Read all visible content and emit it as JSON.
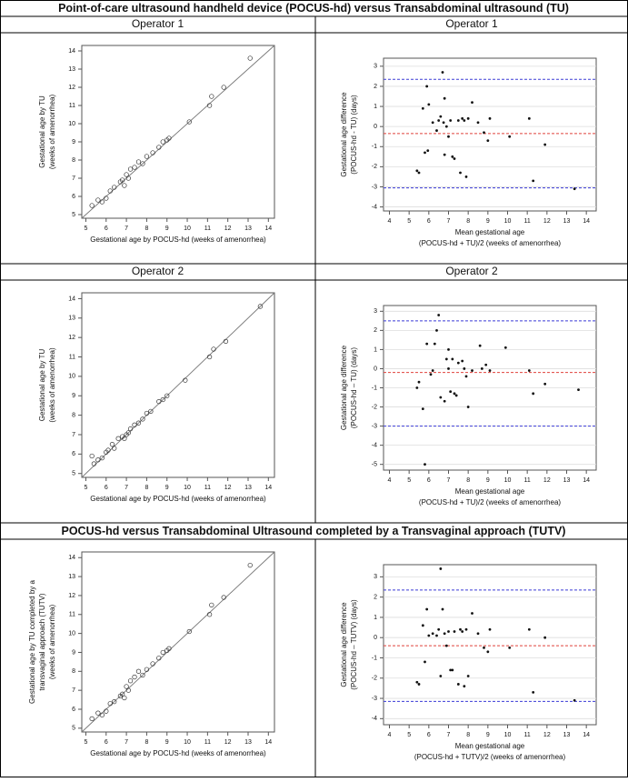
{
  "headers": [
    "Point-of-care ultrasound handheld device (POCUS-hd) versus Transabdominal ultrasound (TU)",
    "POCUS-hd versus Transabdominal Ultrasound completed by a Transvaginal approach (TUTV)"
  ],
  "chart_data": [
    {
      "type": "scatter",
      "title": "Operator 1",
      "marker": "open-circle",
      "identity_line": true,
      "grid": false,
      "xlabel": [
        "Gestational age by POCUS-hd (weeks of amenorrhea)"
      ],
      "ylabel": [
        "Gestational age by TU",
        "(weeks of amenorrhea)"
      ],
      "xlim": [
        4.8,
        14.3
      ],
      "ylim": [
        4.8,
        14.3
      ],
      "xticks": [
        5,
        6,
        7,
        8,
        9,
        10,
        11,
        12,
        13,
        14
      ],
      "yticks": [
        5,
        6,
        7,
        8,
        9,
        10,
        11,
        12,
        13,
        14
      ],
      "x": [
        5.3,
        5.6,
        5.8,
        6.0,
        6.2,
        6.4,
        6.7,
        6.8,
        6.9,
        7.0,
        7.1,
        7.2,
        7.4,
        7.6,
        7.8,
        8.0,
        8.3,
        8.6,
        8.8,
        9.0,
        9.1,
        10.1,
        11.1,
        11.2,
        11.8,
        13.1
      ],
      "y": [
        5.5,
        5.8,
        5.7,
        5.9,
        6.3,
        6.5,
        6.8,
        6.9,
        6.6,
        7.2,
        7.0,
        7.5,
        7.6,
        7.9,
        7.8,
        8.2,
        8.4,
        8.7,
        9.0,
        9.1,
        9.2,
        10.1,
        11.0,
        11.5,
        12.0,
        13.6
      ]
    },
    {
      "type": "scatter",
      "title": "Operator 1",
      "marker": "dot",
      "grid": true,
      "xlabel": [
        "Mean gestational age",
        "(POCUS-hd + TU)/2 (weeks of amenorrhea)"
      ],
      "ylabel": [
        "Gestational age difference",
        "(POCUS-hd - TU) (days)"
      ],
      "xlim": [
        3.7,
        14.5
      ],
      "ylim": [
        -4.2,
        3.4
      ],
      "xticks": [
        4,
        5,
        6,
        7,
        8,
        9,
        10,
        11,
        12,
        13,
        14
      ],
      "yticks": [
        -4,
        -3,
        -2,
        -1,
        0,
        1,
        2,
        3
      ],
      "ref_lines": [
        {
          "value": 2.35,
          "color": "#3b3bd6"
        },
        {
          "value": -0.35,
          "color": "#e0413b"
        },
        {
          "value": -3.05,
          "color": "#3b3bd6"
        }
      ],
      "x": [
        5.4,
        5.5,
        5.7,
        5.8,
        5.9,
        5.95,
        6.0,
        6.2,
        6.4,
        6.5,
        6.6,
        6.7,
        6.75,
        6.8,
        6.8,
        6.9,
        7.0,
        7.1,
        7.2,
        7.3,
        7.5,
        7.6,
        7.7,
        7.8,
        7.9,
        8.0,
        8.2,
        8.5,
        8.8,
        9.0,
        9.1,
        10.1,
        11.1,
        11.3,
        11.9,
        13.4
      ],
      "y": [
        -2.2,
        -2.3,
        0.9,
        -1.3,
        2.0,
        -1.2,
        1.1,
        0.2,
        -0.2,
        0.3,
        0.5,
        2.7,
        0.2,
        1.4,
        -1.4,
        0.0,
        -0.5,
        0.3,
        -1.5,
        -1.6,
        0.3,
        -2.3,
        0.4,
        0.3,
        -2.5,
        0.4,
        1.2,
        0.2,
        -0.3,
        -0.7,
        0.4,
        -0.5,
        0.4,
        -2.7,
        -0.9,
        -3.1
      ]
    },
    {
      "type": "scatter",
      "title": "Operator 2",
      "marker": "open-circle",
      "identity_line": true,
      "grid": false,
      "xlabel": [
        "Gestational age by POCUS-hd (weeks of amenorrhea)"
      ],
      "ylabel": [
        "Gestational age by TU",
        "(weeks of amenorrhea)"
      ],
      "xlim": [
        4.8,
        14.3
      ],
      "ylim": [
        4.8,
        14.3
      ],
      "xticks": [
        5,
        6,
        7,
        8,
        9,
        10,
        11,
        12,
        13,
        14
      ],
      "yticks": [
        5,
        6,
        7,
        8,
        9,
        10,
        11,
        12,
        13,
        14
      ],
      "x": [
        5.3,
        5.4,
        5.6,
        5.8,
        6.0,
        6.1,
        6.3,
        6.4,
        6.6,
        6.8,
        6.9,
        7.0,
        7.1,
        7.2,
        7.4,
        7.6,
        7.8,
        8.0,
        8.2,
        8.6,
        8.8,
        9.0,
        9.9,
        11.1,
        11.3,
        11.9,
        13.6
      ],
      "y": [
        5.9,
        5.5,
        5.7,
        5.8,
        6.1,
        6.2,
        6.5,
        6.3,
        6.8,
        6.9,
        6.8,
        7.0,
        7.1,
        7.3,
        7.5,
        7.6,
        7.8,
        8.1,
        8.2,
        8.7,
        8.8,
        9.0,
        9.8,
        11.0,
        11.4,
        11.8,
        13.6
      ]
    },
    {
      "type": "scatter",
      "title": "Operator 2",
      "marker": "dot",
      "grid": true,
      "xlabel": [
        "Mean gestational age",
        "(POCUS-hd + TU)/2 (weeks of amenorrhea)"
      ],
      "ylabel": [
        "Gestational age difference",
        "(POCUS-hd – TU) (days)"
      ],
      "xlim": [
        3.7,
        14.5
      ],
      "ylim": [
        -5.3,
        3.3
      ],
      "xticks": [
        4,
        5,
        6,
        7,
        8,
        9,
        10,
        11,
        12,
        13,
        14
      ],
      "yticks": [
        -5,
        -4,
        -3,
        -2,
        -1,
        0,
        1,
        2,
        3
      ],
      "ref_lines": [
        {
          "value": 2.5,
          "color": "#3b3bd6"
        },
        {
          "value": -0.2,
          "color": "#e0413b"
        },
        {
          "value": -3.0,
          "color": "#3b3bd6"
        }
      ],
      "x": [
        5.4,
        5.5,
        5.7,
        5.8,
        5.9,
        6.1,
        6.2,
        6.3,
        6.4,
        6.5,
        6.6,
        6.8,
        6.9,
        7.0,
        7.0,
        7.1,
        7.2,
        7.3,
        7.4,
        7.5,
        7.7,
        7.8,
        7.9,
        8.0,
        8.2,
        8.6,
        8.7,
        8.9,
        9.1,
        9.9,
        11.1,
        11.3,
        11.9,
        13.6
      ],
      "y": [
        -1.0,
        -0.7,
        -2.1,
        -5.0,
        1.3,
        -0.3,
        -0.1,
        1.3,
        2.0,
        2.8,
        -1.5,
        -1.7,
        0.5,
        0.0,
        1.0,
        -1.2,
        0.5,
        -1.3,
        -1.4,
        0.3,
        0.4,
        0.0,
        -0.4,
        -2.0,
        -0.1,
        1.2,
        0.0,
        0.2,
        -0.1,
        1.1,
        -0.1,
        -1.3,
        -0.8,
        -1.1
      ]
    },
    {
      "type": "scatter",
      "marker": "open-circle",
      "identity_line": true,
      "grid": false,
      "xlabel": [
        "Gestational age by POCUS-hd (weeks of amenorrhea)"
      ],
      "ylabel": [
        "Gestational age by TU completed by a",
        "transvaginal approach (TUTV)",
        "(weeks of amenorrhea)"
      ],
      "xlim": [
        4.8,
        14.3
      ],
      "ylim": [
        4.8,
        14.3
      ],
      "xticks": [
        5,
        6,
        7,
        8,
        9,
        10,
        11,
        12,
        13,
        14
      ],
      "yticks": [
        5,
        6,
        7,
        8,
        9,
        10,
        11,
        12,
        13,
        14
      ],
      "x": [
        5.3,
        5.6,
        5.8,
        6.0,
        6.2,
        6.4,
        6.7,
        6.8,
        6.9,
        7.0,
        7.1,
        7.2,
        7.4,
        7.6,
        7.8,
        8.0,
        8.3,
        8.6,
        8.8,
        9.0,
        9.1,
        10.1,
        11.1,
        11.2,
        11.8,
        13.1
      ],
      "y": [
        5.5,
        5.8,
        5.7,
        5.9,
        6.3,
        6.4,
        6.7,
        6.8,
        6.6,
        7.2,
        7.0,
        7.5,
        7.7,
        8.0,
        7.8,
        8.1,
        8.4,
        8.7,
        9.0,
        9.1,
        9.2,
        10.1,
        11.0,
        11.5,
        11.9,
        13.6
      ]
    },
    {
      "type": "scatter",
      "marker": "dot",
      "grid": true,
      "xlabel": [
        "Mean gestational age",
        "(POCUS-hd + TUTV)/2 (weeks of amenorrhea)"
      ],
      "ylabel": [
        "Gestational age difference",
        "(POCUS-hd – TUTV) (days)"
      ],
      "xlim": [
        3.7,
        14.5
      ],
      "ylim": [
        -4.3,
        3.6
      ],
      "xticks": [
        4,
        5,
        6,
        7,
        8,
        9,
        10,
        11,
        12,
        13,
        14
      ],
      "yticks": [
        -4,
        -3,
        -2,
        -1,
        0,
        1,
        2,
        3
      ],
      "ref_lines": [
        {
          "value": 2.35,
          "color": "#3b3bd6"
        },
        {
          "value": -0.4,
          "color": "#e0413b"
        },
        {
          "value": -3.15,
          "color": "#3b3bd6"
        }
      ],
      "x": [
        5.4,
        5.5,
        5.7,
        5.8,
        5.9,
        6.0,
        6.2,
        6.4,
        6.5,
        6.6,
        6.6,
        6.7,
        6.8,
        6.9,
        7.0,
        7.1,
        7.2,
        7.3,
        7.5,
        7.6,
        7.7,
        7.8,
        7.9,
        8.0,
        8.2,
        8.5,
        8.8,
        9.0,
        9.1,
        10.1,
        11.1,
        11.3,
        11.9,
        13.4
      ],
      "y": [
        -2.2,
        -2.3,
        0.6,
        -1.2,
        1.4,
        0.1,
        0.2,
        0.1,
        0.4,
        3.4,
        -1.9,
        1.4,
        0.2,
        -0.4,
        0.3,
        -1.6,
        -1.6,
        0.3,
        -2.3,
        0.4,
        0.3,
        -2.4,
        0.4,
        -1.9,
        1.2,
        0.2,
        -0.5,
        -0.7,
        0.4,
        -0.5,
        0.4,
        -2.7,
        0.0,
        -3.1
      ]
    }
  ]
}
